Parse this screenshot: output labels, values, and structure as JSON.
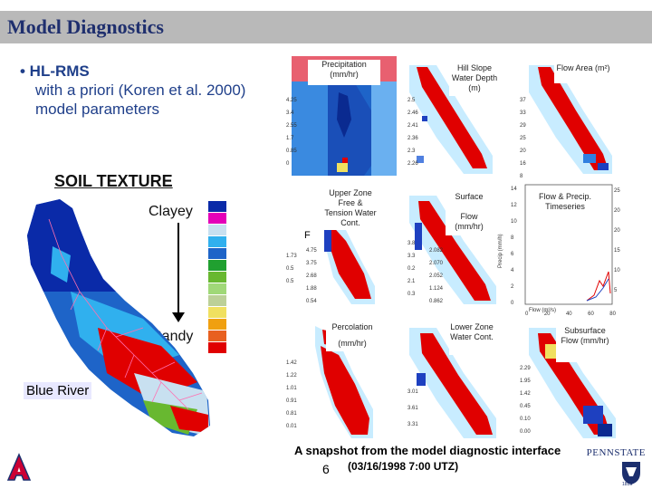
{
  "header": {
    "title": "Model Diagnostics"
  },
  "bullet": {
    "line1": "• HL-RMS",
    "line2": "with a priori (Koren et al. 2000)",
    "line3": "model parameters"
  },
  "soil": {
    "title": "SOIL TEXTURE",
    "top": "Clayey",
    "bottom": "Sandy",
    "river": "Blue River"
  },
  "legend_colors": [
    "#0a2aa8",
    "#e400b8",
    "#c8e0f0",
    "#30b0ee",
    "#1e64c8",
    "#20a030",
    "#68b830",
    "#a0d878",
    "#bcd098",
    "#f0e060",
    "#f0a010",
    "#e86020",
    "#e00000"
  ],
  "panels": {
    "precip": "Precipitation (mm/hr)",
    "hill": "Hill Slope Water Depth (m)",
    "area": "Flow Area (m²)",
    "upper": "Upper Zone Free & Tension Water Cont.",
    "surface1": "Surface",
    "surface2": "Flow (mm/hr)",
    "timeseries": "Flow & Precip. Timeseries",
    "perc1": "Percolation",
    "perc2": "(mm/hr)",
    "lower": "Lower Zone Water Cont.",
    "subsurface": "Subsurface Flow (mm/hr)",
    "f_char": "F",
    "ts_ylabel": "Precip (mm/h)",
    "ts_xlabel": "Flow (m³/s)"
  },
  "axes": {
    "a1": [
      "4.25",
      "3.4",
      "2.55",
      "1.7",
      "0.85",
      "0"
    ],
    "a2": [
      "2.5",
      "2.46",
      "2.41",
      "2.36",
      "2.3",
      "2.26"
    ],
    "a3": [
      "37",
      "33",
      "29",
      "25",
      "20",
      "16",
      "8"
    ],
    "a4": [
      "1.73",
      "0.5",
      "0.5"
    ],
    "a5": [
      "4.75",
      "3.75",
      "2.68",
      "1.88",
      "0.54"
    ],
    "a6": [
      "3.8",
      "3.3",
      "0.2",
      "2.1",
      "0.3"
    ],
    "a7": [
      "2.082",
      "2.070",
      "2.052",
      "1.124",
      "0.862"
    ],
    "a8": [
      "14",
      "12",
      "10",
      "8",
      "6",
      "4",
      "2",
      "0"
    ],
    "a9": [
      "25",
      "20",
      "20",
      "15",
      "10",
      "5"
    ],
    "a10": [
      "1.42",
      "1.22",
      "1.01",
      "0.91",
      "0.81",
      "0.01"
    ],
    "a11": [
      "3.01",
      "3.61",
      "3.31"
    ],
    "a12": [
      "2.29",
      "1.95",
      "1.42",
      "0.45",
      "0.10",
      "0.00"
    ],
    "ts_xticks": [
      "0",
      "20",
      "40",
      "60",
      "80"
    ]
  },
  "caption": {
    "line1": "A snapshot from the model diagnostic interface",
    "line2": "(03/16/1998 7:00 UTZ)",
    "page": "6"
  },
  "logos": {
    "psu": "PENNSTATE",
    "psu_year": "1855"
  }
}
